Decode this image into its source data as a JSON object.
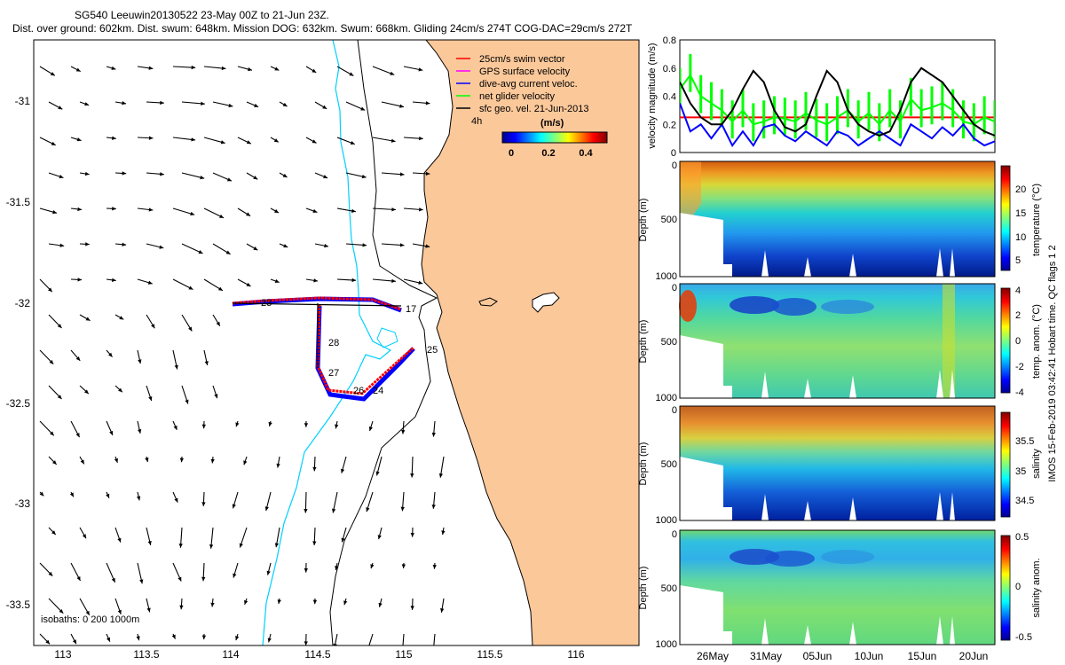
{
  "title": {
    "line1": "SG540 Leeuwin20130522 23-May 00Z to 21-Jun 23Z.",
    "line2": "Dist. over ground: 602km. Dist. swum: 648km. Mission DOG: 632km. Swum: 668km. Gliding 24cm/s 274T COG-DAC=29cm/s 272T"
  },
  "footer_text": "IMOS 15-Feb-2019 03:42:41 Hobart time. QC flags 1 2",
  "colors": {
    "land": "#fbc89a",
    "swim_vector": "#ff0000",
    "gps_velocity": "#ff00ff",
    "current": "#0000ff",
    "net_glider": "#00ff00",
    "sfc_geo": "#000000",
    "isobath": "#00d0ff",
    "reference_line": "#ff0000"
  },
  "map": {
    "legend": [
      {
        "label": "25cm/s swim vector",
        "color": "#ff0000"
      },
      {
        "label": "GPS surface velocity",
        "color": "#ff00ff"
      },
      {
        "label": "dive-avg current veloc.",
        "color": "#0000ff"
      },
      {
        "label": "net glider velocity",
        "color": "#00ff00"
      },
      {
        "label": "sfc geo. vel. 21-Jun-2013",
        "color": "#000000"
      }
    ],
    "colorbar": {
      "label": "(m/s)",
      "ticks": [
        "0",
        "0.2",
        "0.4"
      ]
    },
    "isobaths_label": "isobaths: 0   200  1000m",
    "time_label": "4h",
    "day_labels": [
      "23",
      "17",
      "28",
      "27",
      "26",
      "24",
      "25"
    ],
    "x_ticks": [
      "113",
      "113.5",
      "114",
      "114.5",
      "115",
      "115.5",
      "116"
    ],
    "y_ticks": [
      "-31",
      "-31.5",
      "-32",
      "-32.5",
      "-33",
      "-33.5"
    ]
  },
  "chart_data": [
    {
      "type": "line",
      "title": "velocity magnitude",
      "ylabel": "velocity magnitude (m/s)",
      "ylim": [
        0,
        0.8
      ],
      "yticks": [
        "0",
        "0.2",
        "0.4",
        "0.6",
        "0.8"
      ],
      "x_range_days": [
        0,
        30
      ],
      "reference_value": 0.25,
      "series": [
        {
          "name": "net glider velocity",
          "color": "#00ff00",
          "x": [
            0,
            1,
            2,
            3,
            4,
            5,
            6,
            7,
            8,
            9,
            10,
            11,
            12,
            13,
            14,
            15,
            16,
            17,
            18,
            19,
            20,
            21,
            22,
            23,
            24,
            25,
            26,
            27,
            28,
            29,
            30
          ],
          "values": [
            0.45,
            0.55,
            0.4,
            0.35,
            0.3,
            0.22,
            0.3,
            0.2,
            0.22,
            0.25,
            0.24,
            0.22,
            0.28,
            0.23,
            0.2,
            0.25,
            0.3,
            0.22,
            0.28,
            0.2,
            0.3,
            0.22,
            0.38,
            0.3,
            0.32,
            0.35,
            0.3,
            0.22,
            0.2,
            0.25,
            0.22
          ]
        },
        {
          "name": "dive-avg current veloc.",
          "color": "#0000ff",
          "x": [
            0,
            1,
            2,
            3,
            4,
            5,
            6,
            7,
            8,
            9,
            10,
            11,
            12,
            13,
            14,
            15,
            16,
            17,
            18,
            19,
            20,
            21,
            22,
            23,
            24,
            25,
            26,
            27,
            28,
            29,
            30
          ],
          "values": [
            0.35,
            0.15,
            0.2,
            0.1,
            0.2,
            0.05,
            0.15,
            0.05,
            0.18,
            0.2,
            0.12,
            0.08,
            0.15,
            0.1,
            0.05,
            0.15,
            0.12,
            0.05,
            0.1,
            0.15,
            0.1,
            0.05,
            0.2,
            0.15,
            0.1,
            0.18,
            0.12,
            0.2,
            0.1,
            0.05,
            0.08
          ]
        },
        {
          "name": "sfc geo. vel.",
          "color": "#000000",
          "x": [
            0,
            1,
            2,
            3,
            4,
            5,
            6,
            7,
            8,
            9,
            10,
            11,
            12,
            13,
            14,
            15,
            16,
            17,
            18,
            19,
            20,
            21,
            22,
            23,
            24,
            25,
            26,
            27,
            28,
            29,
            30
          ],
          "values": [
            0.5,
            0.35,
            0.25,
            0.2,
            0.2,
            0.3,
            0.45,
            0.58,
            0.5,
            0.3,
            0.18,
            0.15,
            0.2,
            0.4,
            0.58,
            0.5,
            0.3,
            0.2,
            0.15,
            0.12,
            0.15,
            0.3,
            0.5,
            0.6,
            0.55,
            0.5,
            0.4,
            0.3,
            0.2,
            0.15,
            0.12
          ]
        }
      ]
    },
    {
      "type": "heatmap",
      "ylabel": "Depth (m)",
      "cbar_label": "temperature (°C)",
      "cbar_ticks": [
        "20",
        "15",
        "10",
        "5"
      ],
      "yticks": [
        "0",
        "500",
        "1000"
      ]
    },
    {
      "type": "heatmap",
      "ylabel": "Depth (m)",
      "cbar_label": "temp. anom. (°C)",
      "cbar_ticks": [
        "4",
        "2",
        "0",
        "-2",
        "-4"
      ],
      "yticks": [
        "0",
        "500",
        "1000"
      ]
    },
    {
      "type": "heatmap",
      "ylabel": "Depth (m)",
      "cbar_label": "salinity",
      "cbar_ticks": [
        "35.5",
        "35",
        "34.5"
      ],
      "yticks": [
        "0",
        "500",
        "1000"
      ]
    },
    {
      "type": "heatmap",
      "ylabel": "Depth (m)",
      "cbar_label": "salinity anom.",
      "cbar_ticks": [
        "0.5",
        "0",
        "-0.5"
      ],
      "yticks": [
        "0",
        "500",
        "1000"
      ]
    }
  ],
  "time_axis": {
    "ticks": [
      "26May",
      "31May",
      "05Jun",
      "10Jun",
      "15Jun",
      "20Jun"
    ]
  }
}
